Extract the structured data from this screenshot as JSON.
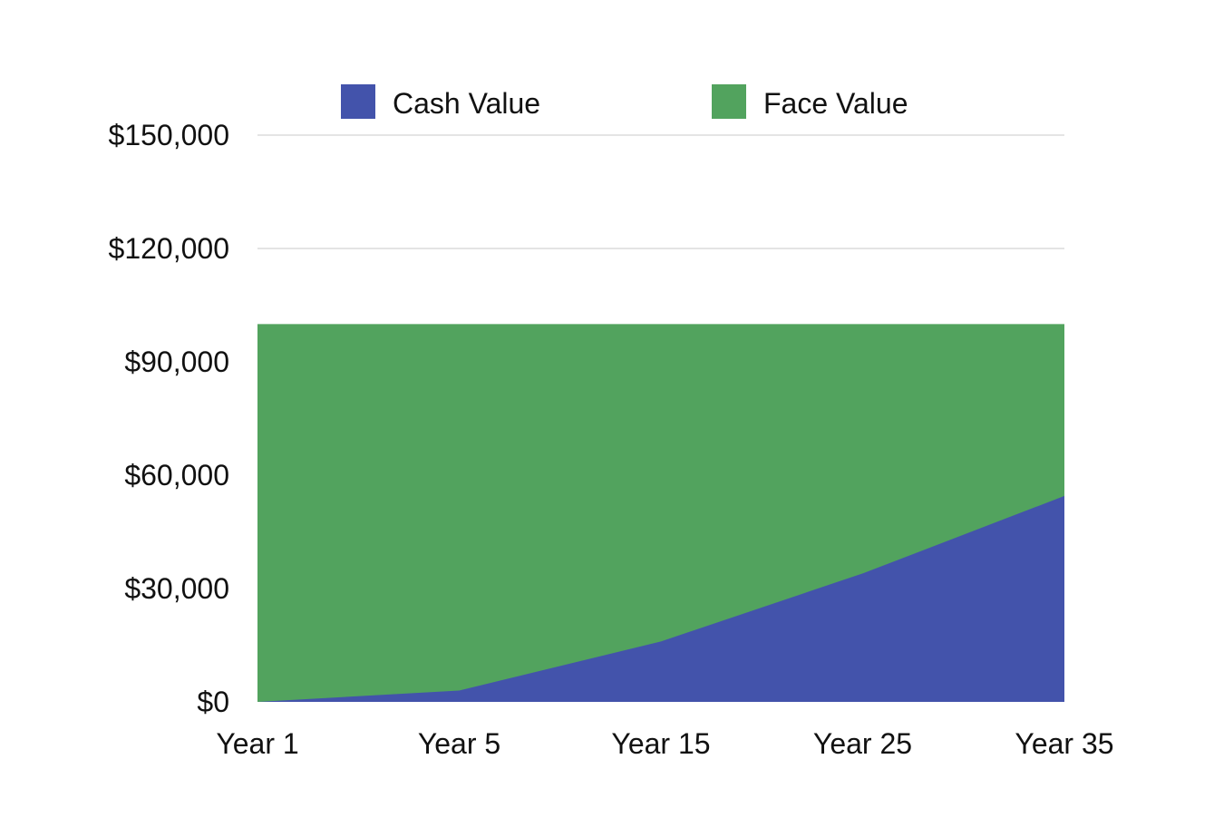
{
  "chart_data": {
    "type": "area",
    "stacked": false,
    "categories": [
      "Year 1",
      "Year 5",
      "Year 15",
      "Year 25",
      "Year 35"
    ],
    "series": [
      {
        "name": "Face Value",
        "values": [
          100000,
          100000,
          100000,
          100000,
          100000
        ],
        "color": "#52a35e"
      },
      {
        "name": "Cash Value",
        "values": [
          0,
          3000,
          16000,
          34000,
          54500
        ],
        "color": "#4353ab"
      }
    ],
    "legend_order": [
      "Cash Value",
      "Face Value"
    ],
    "ylim": [
      0,
      150000
    ],
    "y_ticks": [
      {
        "value": 0,
        "label": "$0"
      },
      {
        "value": 30000,
        "label": "$30,000"
      },
      {
        "value": 60000,
        "label": "$60,000"
      },
      {
        "value": 90000,
        "label": "$90,000"
      },
      {
        "value": 120000,
        "label": "$120,000"
      },
      {
        "value": 150000,
        "label": "$150,000"
      }
    ],
    "gridlines": true,
    "legend_position": "top",
    "title": "",
    "xlabel": "",
    "ylabel": ""
  }
}
